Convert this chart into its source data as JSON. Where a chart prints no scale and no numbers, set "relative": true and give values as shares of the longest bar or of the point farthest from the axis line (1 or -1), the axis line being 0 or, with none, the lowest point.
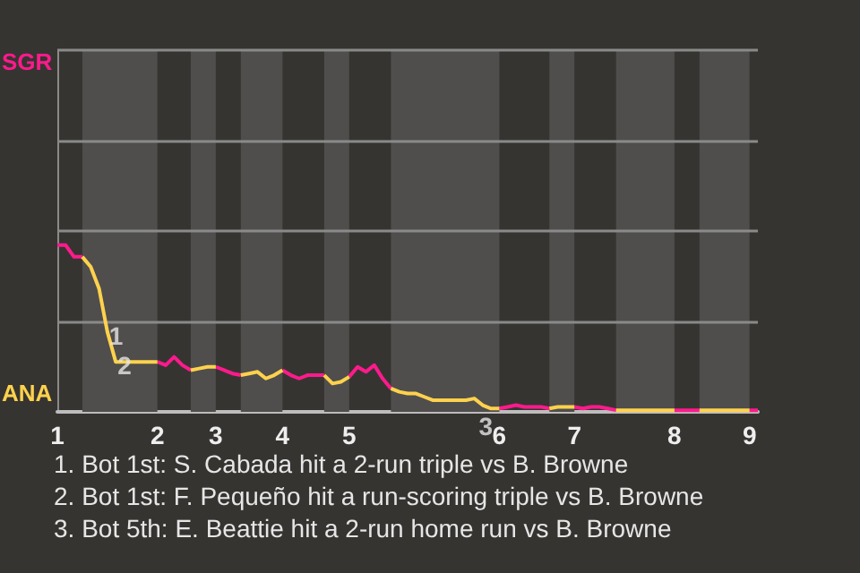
{
  "chart_data": {
    "type": "line",
    "relative": true,
    "categories": [
      "1",
      null,
      null,
      null,
      null,
      null,
      null,
      null,
      null,
      null,
      null,
      null,
      "2",
      null,
      null,
      null,
      null,
      null,
      null,
      "3",
      null,
      null,
      null,
      null,
      null,
      null,
      null,
      "4",
      null,
      null,
      null,
      null,
      null,
      null,
      null,
      "5",
      null,
      null,
      null,
      null,
      null,
      null,
      null,
      null,
      null,
      null,
      null,
      null,
      null,
      null,
      null,
      null,
      null,
      "6",
      null,
      null,
      null,
      null,
      null,
      null,
      null,
      null,
      "7",
      null,
      null,
      null,
      null,
      null,
      null,
      null,
      null,
      null,
      null,
      null,
      "8",
      null,
      null,
      null,
      null,
      null,
      null,
      null,
      null,
      "9",
      null
    ],
    "series": [
      {
        "color": "#ff1a8c",
        "values": [
          1,
          1,
          0.93,
          0.93,
          null,
          null,
          null,
          null,
          null,
          null,
          null,
          null,
          0.3,
          0.28,
          0.33,
          0.28,
          0.25,
          null,
          null,
          0.27,
          0.25,
          0.23,
          0.22,
          null,
          null,
          null,
          null,
          0.25,
          0.22,
          0.2,
          0.22,
          0.22,
          0.22,
          null,
          null,
          0.21,
          0.27,
          0.24,
          0.28,
          0.2,
          0.14,
          null,
          null,
          null,
          null,
          null,
          null,
          null,
          null,
          null,
          null,
          null,
          null,
          0.02,
          0.03,
          0.04,
          0.03,
          0.03,
          0.03,
          0.02,
          null,
          null,
          0.03,
          0.02,
          0.03,
          0.03,
          0.02,
          0.01,
          null,
          null,
          null,
          null,
          null,
          null,
          0.01,
          0.01,
          0.01,
          0.01,
          null,
          null,
          null,
          null,
          null,
          0.01,
          0.01
        ]
      },
      {
        "color": "#ffd24d",
        "values": [
          null,
          null,
          null,
          0.93,
          0.87,
          0.74,
          0.48,
          0.3,
          0.3,
          0.3,
          0.3,
          0.3,
          0.3,
          null,
          null,
          null,
          0.25,
          0.26,
          0.27,
          0.27,
          null,
          null,
          0.22,
          0.23,
          0.24,
          0.2,
          0.22,
          0.25,
          null,
          null,
          null,
          null,
          0.22,
          0.17,
          0.18,
          0.21,
          null,
          null,
          null,
          null,
          0.14,
          0.12,
          0.11,
          0.11,
          0.09,
          0.07,
          0.07,
          0.07,
          0.07,
          0.07,
          0.08,
          0.04,
          0.02,
          0.02,
          null,
          null,
          null,
          null,
          null,
          0.02,
          0.03,
          0.03,
          0.03,
          null,
          null,
          null,
          null,
          0.01,
          0.01,
          0.01,
          0.01,
          0.01,
          0.01,
          0.01,
          0.01,
          null,
          null,
          0.01,
          0.01,
          0.01,
          0.01,
          0.01,
          0.01,
          0.01,
          null
        ]
      }
    ],
    "ref_lines": [
      {
        "axis": "y",
        "value": 0.54,
        "color": "#8a8a8a"
      },
      {
        "axis": "y",
        "value": 1.09,
        "color": "#8a8a8a"
      },
      {
        "axis": "y",
        "value": 1.63,
        "color": "#8a8a8a"
      },
      {
        "axis": "y",
        "value": 2.17,
        "color": "#8a8a8a"
      }
    ],
    "marker": "none",
    "annotations": [
      {
        "text": "1",
        "y": 0.48
      },
      {
        "text": "2",
        "y": 0.3
      },
      {
        "text": "3",
        "y": 0.02
      },
      "SGR",
      "ANA",
      "1. Bot 1st: S. Cabada hit a 2-run triple vs B. Browne",
      "2. Bot 1st: F. Pequeño hit a run-scoring triple vs B. Browne",
      "3. Bot 5th: E. Beattie hit a 2-run home run vs B. Browne"
    ]
  }
}
